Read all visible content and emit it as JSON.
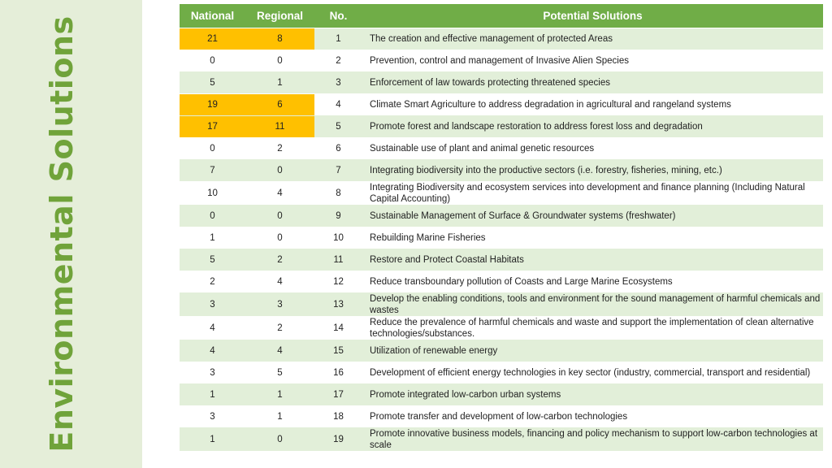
{
  "side_title": "Environmental Solutions",
  "table": {
    "headers": {
      "national": "National",
      "regional": "Regional",
      "no": "No.",
      "solutions": "Potential Solutions"
    },
    "highlight_color": "#ffc000",
    "header_color": "#70ad47",
    "rows": [
      {
        "national": "21",
        "regional": "8",
        "no": "1",
        "solution": "The creation and effective management of protected Areas",
        "highlight": true
      },
      {
        "national": "0",
        "regional": "0",
        "no": "2",
        "solution": "Prevention, control and management of Invasive Alien Species",
        "highlight": false
      },
      {
        "national": "5",
        "regional": "1",
        "no": "3",
        "solution": "Enforcement of law towards protecting threatened species",
        "highlight": false
      },
      {
        "national": "19",
        "regional": "6",
        "no": "4",
        "solution": "Climate Smart Agriculture to address degradation in agricultural and rangeland systems",
        "highlight": true
      },
      {
        "national": "17",
        "regional": "11",
        "no": "5",
        "solution": "Promote forest and landscape restoration to address forest loss and degradation",
        "highlight": true
      },
      {
        "national": "0",
        "regional": "2",
        "no": "6",
        "solution": "Sustainable use of plant and animal genetic resources",
        "highlight": false
      },
      {
        "national": "7",
        "regional": "0",
        "no": "7",
        "solution": "Integrating biodiversity into the productive sectors (i.e. forestry, fisheries, mining, etc.)",
        "highlight": false
      },
      {
        "national": "10",
        "regional": "4",
        "no": "8",
        "solution": "Integrating Biodiversity and ecosystem services into development and finance planning (Including Natural Capital Accounting)",
        "highlight": false
      },
      {
        "national": "0",
        "regional": "0",
        "no": "9",
        "solution": "Sustainable Management of Surface & Groundwater systems (freshwater)",
        "highlight": false
      },
      {
        "national": "1",
        "regional": "0",
        "no": "10",
        "solution": "Rebuilding Marine Fisheries",
        "highlight": false
      },
      {
        "national": "5",
        "regional": "2",
        "no": "11",
        "solution": "Restore and Protect Coastal Habitats",
        "highlight": false
      },
      {
        "national": "2",
        "regional": "4",
        "no": "12",
        "solution": "Reduce transboundary pollution of Coasts and Large Marine Ecosystems",
        "highlight": false
      },
      {
        "national": "3",
        "regional": "3",
        "no": "13",
        "solution": "Develop the enabling conditions, tools and environment for the sound management of harmful chemicals and wastes",
        "highlight": false
      },
      {
        "national": "4",
        "regional": "2",
        "no": "14",
        "solution": "Reduce the prevalence of harmful chemicals and waste and support the implementation of clean alternative technologies/substances.",
        "highlight": false
      },
      {
        "national": "4",
        "regional": "4",
        "no": "15",
        "solution": "Utilization of renewable energy",
        "highlight": false
      },
      {
        "national": "3",
        "regional": "5",
        "no": "16",
        "solution": "Development of efficient energy technologies in key sector (industry, commercial, transport and residential)",
        "highlight": false
      },
      {
        "national": "1",
        "regional": "1",
        "no": "17",
        "solution": "Promote integrated low-carbon urban systems",
        "highlight": false
      },
      {
        "national": "3",
        "regional": "1",
        "no": "18",
        "solution": "Promote transfer and development of low-carbon technologies",
        "highlight": false
      },
      {
        "national": "1",
        "regional": "0",
        "no": "19",
        "solution": "Promote innovative business models, financing and policy mechanism to support low-carbon technologies at scale",
        "highlight": false
      }
    ]
  }
}
